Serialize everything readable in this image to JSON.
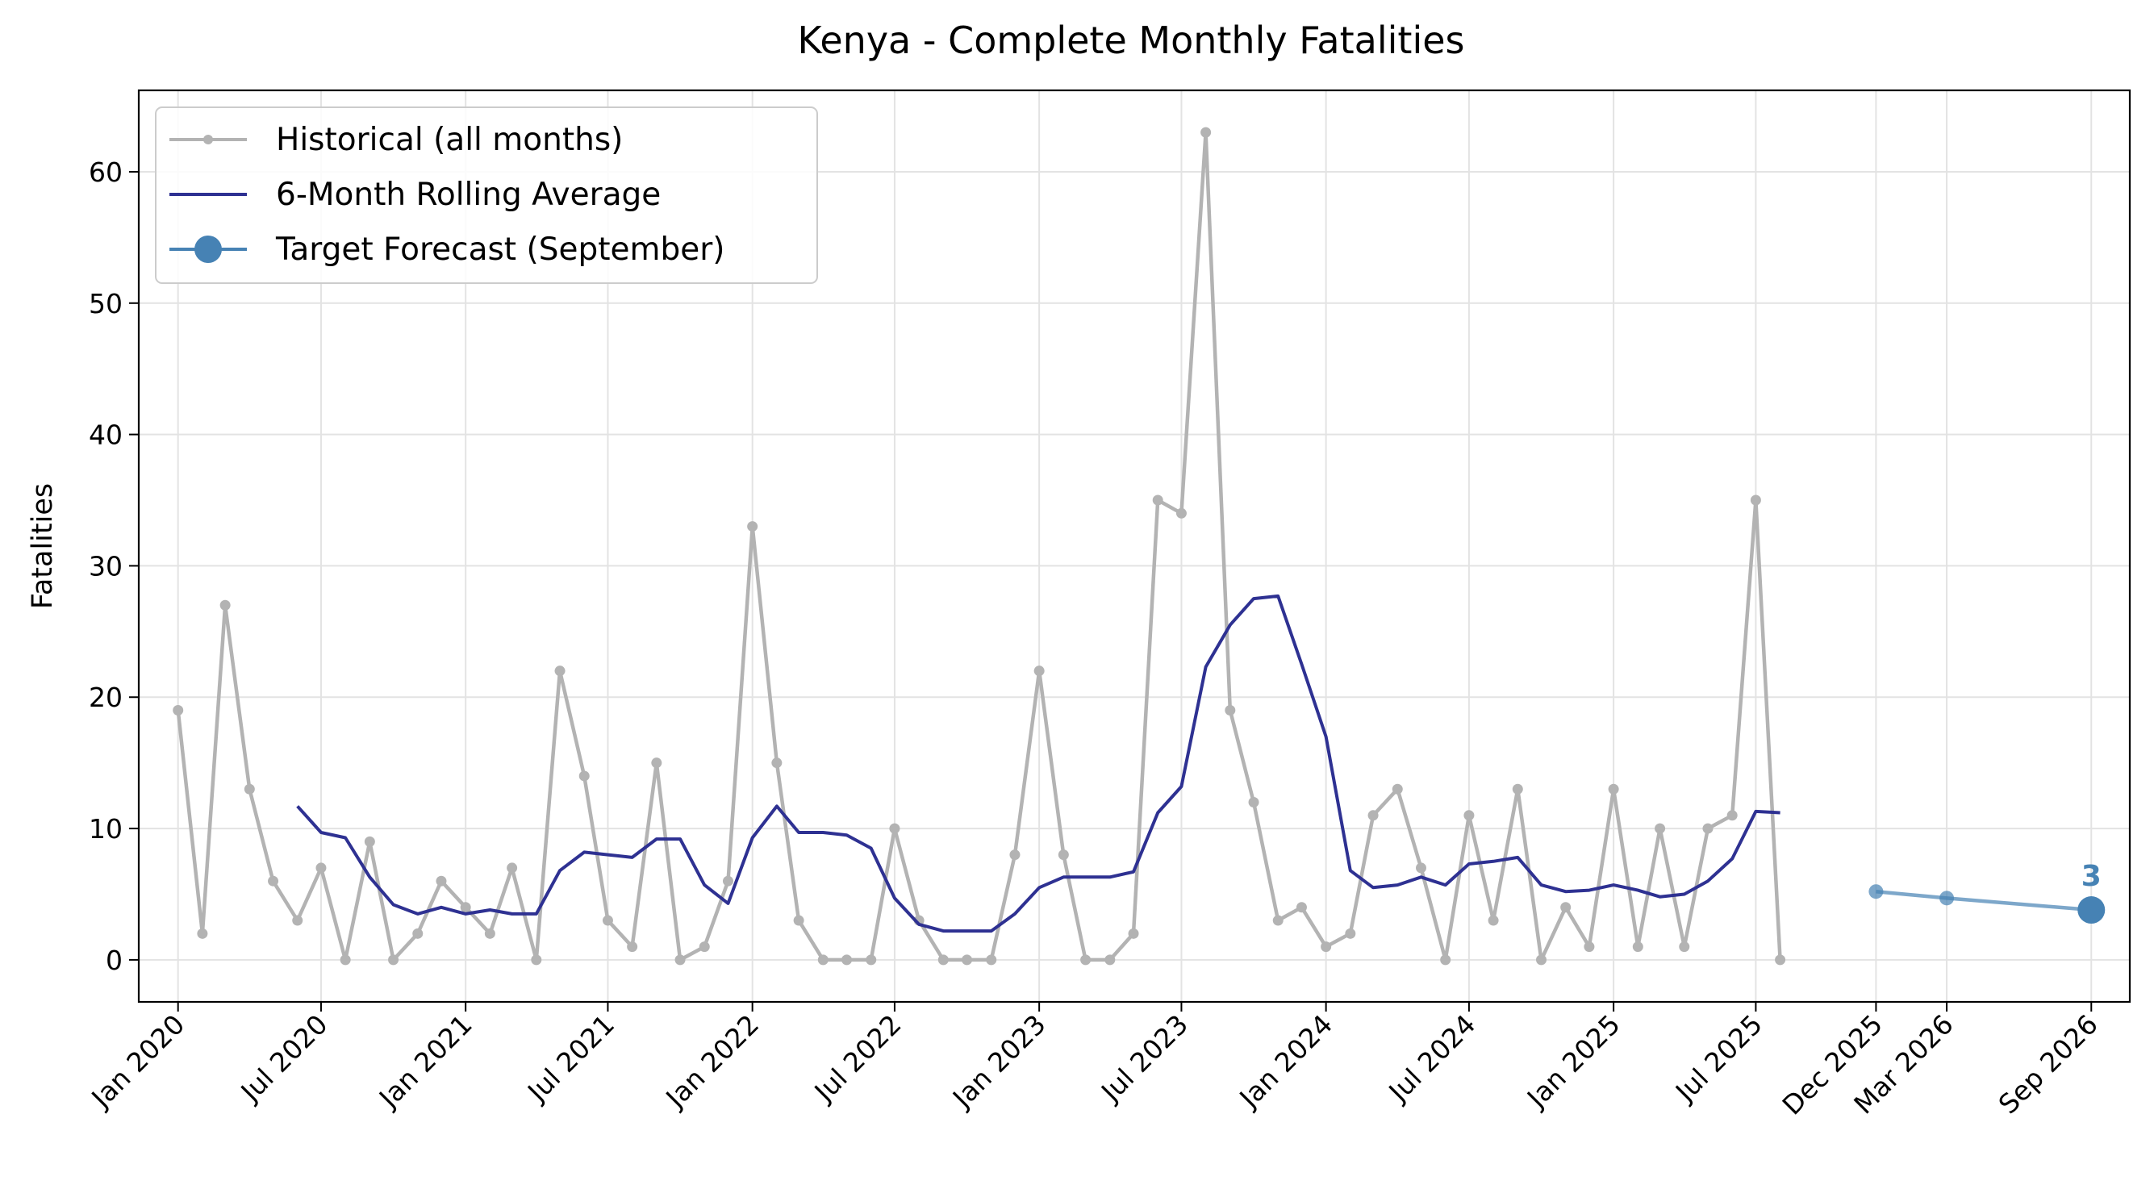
{
  "chart_data": {
    "type": "line",
    "title": "Kenya - Complete Monthly Fatalities",
    "xlabel": "",
    "ylabel": "Fatalities",
    "ylim": [
      -3.2,
      66.2
    ],
    "yticks": [
      0,
      10,
      20,
      30,
      40,
      50,
      60
    ],
    "xlim": [
      "2019-11-12",
      "2026-10-20"
    ],
    "xticks": [
      {
        "date": "2020-01-01",
        "label": "Jan 2020"
      },
      {
        "date": "2020-07-01",
        "label": "Jul 2020"
      },
      {
        "date": "2021-01-01",
        "label": "Jan 2021"
      },
      {
        "date": "2021-07-01",
        "label": "Jul 2021"
      },
      {
        "date": "2022-01-01",
        "label": "Jan 2022"
      },
      {
        "date": "2022-07-01",
        "label": "Jul 2022"
      },
      {
        "date": "2023-01-01",
        "label": "Jan 2023"
      },
      {
        "date": "2023-07-01",
        "label": "Jul 2023"
      },
      {
        "date": "2024-01-01",
        "label": "Jan 2024"
      },
      {
        "date": "2024-07-01",
        "label": "Jul 2024"
      },
      {
        "date": "2025-01-01",
        "label": "Jan 2025"
      },
      {
        "date": "2025-07-01",
        "label": "Jul 2025"
      },
      {
        "date": "2025-12-01",
        "label": "Dec 2025"
      },
      {
        "date": "2026-03-01",
        "label": "Mar 2026"
      },
      {
        "date": "2026-09-01",
        "label": "Sep 2026"
      }
    ],
    "grid": true,
    "legend_position": "top-left",
    "series": [
      {
        "name": "Historical (all months)",
        "color": "#b3b3b3",
        "start": "2020-01",
        "values": [
          19,
          2,
          27,
          13,
          6,
          3,
          7,
          0,
          9,
          0,
          2,
          6,
          4,
          2,
          7,
          0,
          22,
          14,
          3,
          1,
          15,
          0,
          1,
          6,
          33,
          15,
          3,
          0,
          0,
          0,
          10,
          3,
          0,
          0,
          0,
          8,
          22,
          8,
          0,
          0,
          2,
          35,
          34,
          63,
          19,
          12,
          3,
          4,
          1,
          2,
          11,
          13,
          7,
          0,
          11,
          3,
          13,
          0,
          4,
          1,
          13,
          1,
          10,
          1,
          10,
          11,
          35,
          0
        ]
      },
      {
        "name": "6-Month Rolling Average",
        "color": "#2e3192",
        "start": "2020-06",
        "values": [
          11.7,
          9.7,
          9.3,
          6.3,
          4.2,
          3.5,
          4.0,
          3.5,
          3.8,
          3.5,
          3.5,
          6.8,
          8.2,
          8.0,
          7.8,
          9.2,
          9.2,
          5.7,
          4.3,
          9.3,
          11.7,
          9.7,
          9.7,
          9.5,
          8.5,
          4.7,
          2.7,
          2.2,
          2.2,
          2.2,
          3.5,
          5.5,
          6.3,
          6.3,
          6.3,
          6.7,
          11.2,
          13.2,
          22.3,
          25.5,
          27.5,
          27.7,
          22.5,
          17.0,
          6.8,
          5.5,
          5.7,
          6.3,
          5.7,
          7.3,
          7.5,
          7.8,
          5.7,
          5.2,
          5.3,
          5.7,
          5.3,
          4.8,
          5.0,
          6.0,
          7.7,
          11.3,
          11.2
        ]
      },
      {
        "name": "Target Forecast (September)",
        "color": "#4682b4",
        "points": [
          {
            "date": "2025-12",
            "value": 5.2
          },
          {
            "date": "2026-03",
            "value": 4.7
          },
          {
            "date": "2026-09",
            "value": 3.8
          }
        ],
        "label": "3"
      }
    ]
  }
}
